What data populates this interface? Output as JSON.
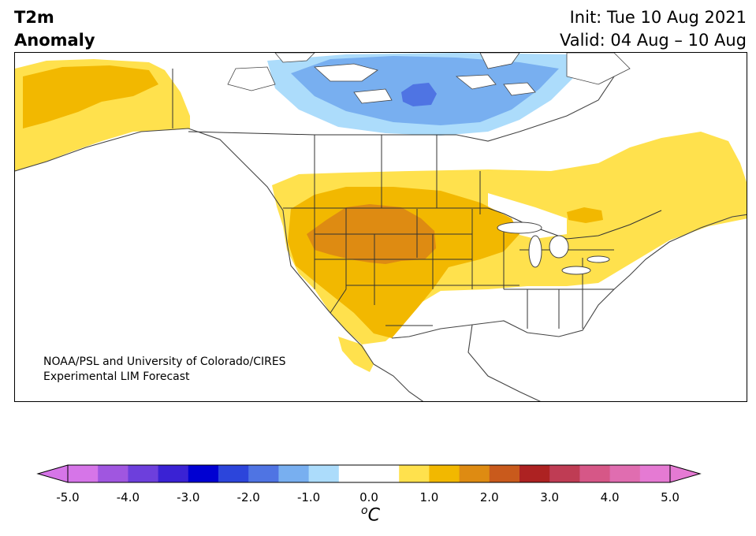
{
  "title": {
    "left_line1": "T2m",
    "left_line2": "Anomaly",
    "right_line1": "Init: Tue 10 Aug 2021",
    "right_line2": "Valid: 04 Aug – 10 Aug"
  },
  "credit": {
    "line1": "NOAA/PSL and University of Colorado/CIRES",
    "line2": "Experimental LIM Forecast"
  },
  "colorbar": {
    "unit_symbol": "o",
    "unit_letter": "C",
    "colors": [
      "#d675e8",
      "#a056e0",
      "#6d3fdc",
      "#3a22d4",
      "#0000d2",
      "#2c45db",
      "#4f74e3",
      "#78aff0",
      "#acdcfb",
      "#ffffff",
      "#ffffff",
      "#ffe14d",
      "#f2b800",
      "#de8b12",
      "#c95a1c",
      "#ad2222",
      "#bf3c54",
      "#d65787",
      "#e06db0",
      "#e57ad3"
    ],
    "tick_labels": [
      "-5.0",
      "-4.0",
      "-3.0",
      "-2.0",
      "-1.0",
      "0.0",
      "1.0",
      "2.0",
      "3.0",
      "4.0",
      "5.0"
    ]
  },
  "legend_colors": {
    "light_yellow": "#ffe14d",
    "gold": "#f2b800",
    "orange": "#de8b12",
    "light_blue": "#acdcfb",
    "mid_blue": "#78aff0",
    "blue": "#4f74e3"
  }
}
